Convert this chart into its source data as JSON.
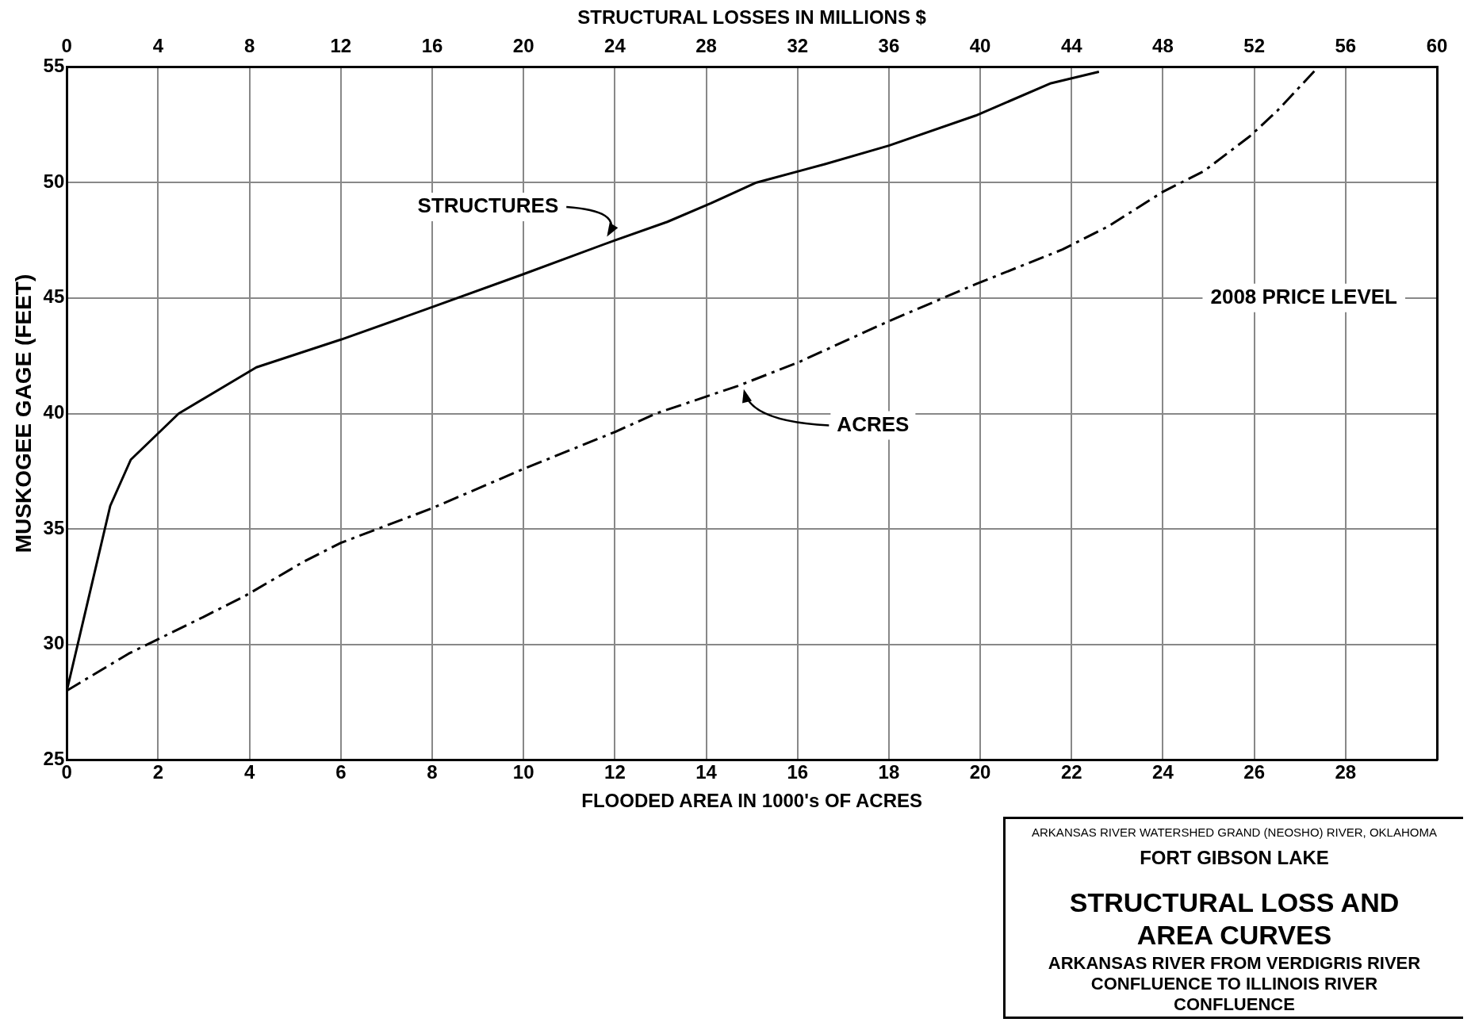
{
  "chart_data": {
    "type": "line",
    "title": "STRUCTURAL LOSS AND AREA CURVES",
    "subtitle": "ARKANSAS RIVER FROM VERDIGRIS RIVER CONFLUENCE TO ILLINOIS RIVER CONFLUENCE",
    "xlabel": "FLOODED AREA IN 1000's OF ACRES",
    "x2label": "STRUCTURAL LOSSES IN MILLIONS $",
    "ylabel": "MUSKOGEE GAGE (FEET)",
    "xlim": [
      0,
      30
    ],
    "xticks": [
      0,
      2,
      4,
      6,
      8,
      10,
      12,
      14,
      16,
      18,
      20,
      22,
      24,
      26,
      28
    ],
    "x2lim": [
      0,
      60
    ],
    "x2ticks": [
      0,
      4,
      8,
      12,
      16,
      20,
      24,
      28,
      32,
      36,
      40,
      44,
      48,
      52,
      56,
      60
    ],
    "ylim": [
      25,
      55
    ],
    "yticks": [
      25,
      30,
      35,
      40,
      45,
      50,
      55
    ],
    "grid": true,
    "legend": false,
    "marker": "none",
    "series": [
      {
        "name": "STRUCTURES",
        "color": "#000000",
        "axis": "x2",
        "line_style": "solid",
        "x": [
          0,
          1.9,
          2.8,
          4.9,
          8.3,
          12,
          15.7,
          19.9,
          24,
          26.3,
          28.2,
          30.2,
          33.2,
          36,
          39.8,
          43.1,
          45.2
        ],
        "values": [
          28,
          36,
          38,
          40,
          42,
          43.2,
          44.5,
          46,
          47.5,
          48.3,
          49.1,
          50,
          50.8,
          51.6,
          52.9,
          54.3,
          54.8
        ]
      },
      {
        "name": "ACRES",
        "color": "#000000",
        "line_style": "dashed",
        "x": [
          0,
          1.35,
          3,
          3.9,
          5.2,
          6,
          8,
          10,
          12,
          12.9,
          14.7,
          16,
          18,
          19.9,
          21.8,
          22.8,
          24,
          24.9,
          25.9,
          26.5,
          27.4
        ],
        "values": [
          28,
          29.6,
          31.2,
          32.1,
          33.6,
          34.4,
          35.9,
          37.6,
          39.2,
          40,
          41.2,
          42.2,
          44,
          45.6,
          47.1,
          48.1,
          49.6,
          50.5,
          52,
          53.1,
          55
        ]
      }
    ],
    "annotations": [
      "2008 PRICE LEVEL",
      "ARKANSAS RIVER WATERSHED   GRAND (NEOSHO) RIVER, OKLAHOMA",
      "FORT GIBSON LAKE"
    ]
  }
}
